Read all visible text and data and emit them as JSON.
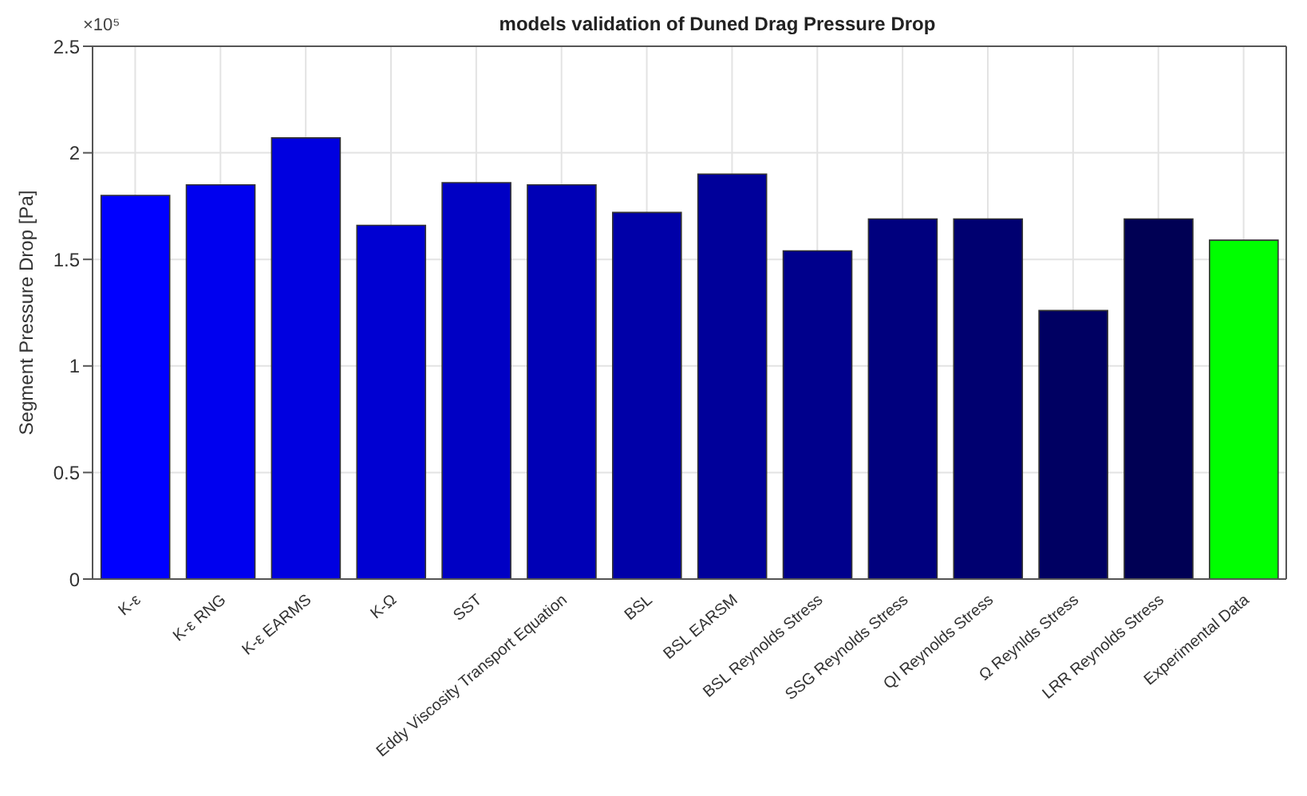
{
  "chart_data": {
    "type": "bar",
    "title": "models validation of Duned Drag Pressure Drop",
    "ylabel": "Segment Pressure Drop [Pa]",
    "annotations": [
      "×10⁵"
    ],
    "categories": [
      "K-ε",
      "K-ε RNG",
      "K-ε EARMS",
      "K-Ω",
      "SST",
      "Eddy Viscosity Transport Equation",
      "BSL",
      "BSL EARSM",
      "BSL Reynolds Stress",
      "SSG Reynolds Stress",
      "QI Reynolds Stress",
      "Ω Reynlds Stress",
      "LRR Reynolds Stress",
      "Experimental Data"
    ],
    "values": [
      1.8,
      1.85,
      2.07,
      1.66,
      1.86,
      1.85,
      1.72,
      1.9,
      1.54,
      1.69,
      1.69,
      1.26,
      1.69,
      1.59
    ],
    "colors": [
      "#0000ff",
      "#0000ef",
      "#0000e0",
      "#0000d2",
      "#0000c4",
      "#0000b6",
      "#0000a8",
      "#00009a",
      "#00008c",
      "#00007e",
      "#000070",
      "#000062",
      "#000054",
      "#00ff00"
    ],
    "ylim": [
      0,
      2.5
    ],
    "yticks": [
      0,
      0.5,
      1,
      1.5,
      2,
      2.5
    ],
    "grid": true
  }
}
